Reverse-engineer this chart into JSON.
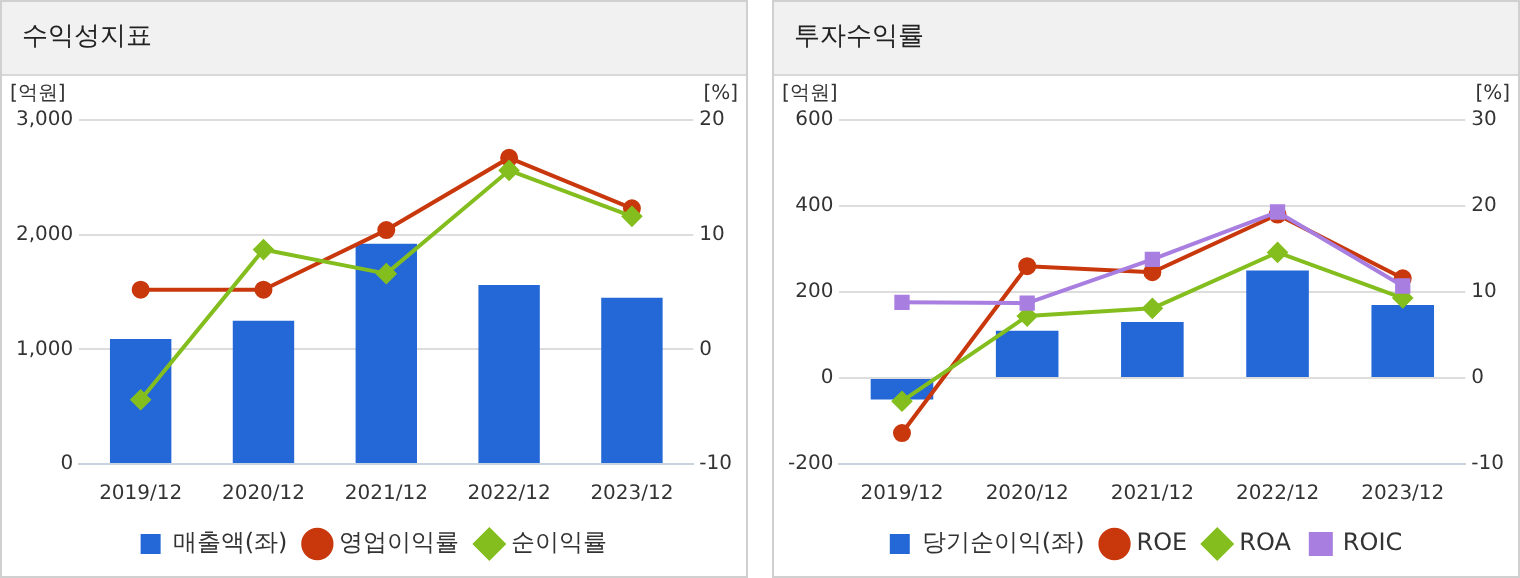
{
  "chart_data": [
    {
      "type": "bar",
      "title": "수익성지표",
      "ylabel": "[억원]",
      "y2label": "[%]",
      "categories": [
        "2019/12",
        "2020/12",
        "2021/12",
        "2022/12",
        "2023/12"
      ],
      "series": [
        {
          "name": "매출액(좌)",
          "color": "#2468d8",
          "values": [
            1090,
            1250,
            1920,
            1560,
            1450
          ]
        },
        {
          "name": "영업이익률",
          "type": "line",
          "axis": "y2",
          "marker": "circle",
          "color": "#c8380c",
          "values": [
            5.2,
            5.2,
            10.4,
            16.7,
            12.3
          ]
        },
        {
          "name": "순이익률",
          "type": "line",
          "axis": "y2",
          "marker": "diamond",
          "color": "#84be1e",
          "values": [
            -4.4,
            8.7,
            6.6,
            15.6,
            11.6
          ]
        }
      ],
      "ylim": [
        0,
        3000
      ],
      "yticks": [
        0,
        {
          "value": 1000,
          "label": "1,000"
        },
        {
          "value": 2000,
          "label": "2,000"
        },
        {
          "value": 3000,
          "label": "3,000"
        }
      ],
      "y2lim": [
        -10,
        20
      ],
      "y2ticks": [
        -10,
        0,
        10,
        20
      ],
      "grid": "y",
      "legend": "bottom"
    },
    {
      "type": "bar",
      "title": "투자수익률",
      "ylabel": "[억원]",
      "y2label": "[%]",
      "categories": [
        "2019/12",
        "2020/12",
        "2021/12",
        "2022/12",
        "2023/12"
      ],
      "series": [
        {
          "name": "당기순이익(좌)",
          "color": "#2468d8",
          "values": [
            -50,
            110,
            130,
            250,
            170
          ]
        },
        {
          "name": "ROE",
          "type": "line",
          "axis": "y2",
          "marker": "circle",
          "color": "#c8380c",
          "values": [
            -6.4,
            13.0,
            12.3,
            19.0,
            11.6
          ]
        },
        {
          "name": "ROA",
          "type": "line",
          "axis": "y2",
          "marker": "diamond",
          "color": "#84be1e",
          "values": [
            -2.7,
            7.2,
            8.1,
            14.6,
            9.3
          ]
        },
        {
          "name": "ROIC",
          "type": "line",
          "axis": "y2",
          "marker": "square",
          "color": "#a87ee0",
          "values": [
            8.8,
            8.7,
            13.8,
            19.3,
            10.7
          ]
        }
      ],
      "ylim": [
        -200,
        600
      ],
      "yticks": [
        -200,
        0,
        200,
        400,
        600
      ],
      "y2lim": [
        -10,
        30
      ],
      "y2ticks": [
        -10,
        0,
        10,
        20,
        30
      ],
      "grid": "y",
      "legend": "bottom"
    }
  ]
}
